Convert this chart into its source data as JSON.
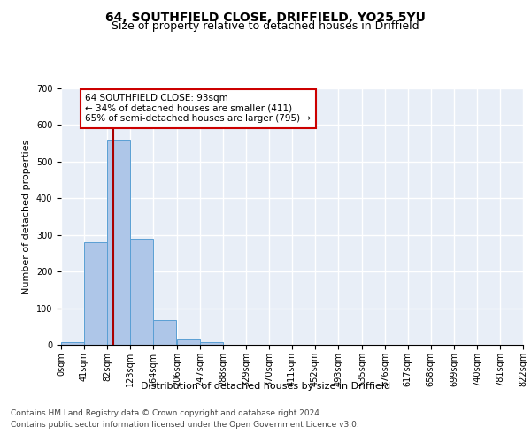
{
  "title1": "64, SOUTHFIELD CLOSE, DRIFFIELD, YO25 5YU",
  "title2": "Size of property relative to detached houses in Driffield",
  "xlabel": "Distribution of detached houses by size in Driffield",
  "ylabel": "Number of detached properties",
  "footer1": "Contains HM Land Registry data © Crown copyright and database right 2024.",
  "footer2": "Contains public sector information licensed under the Open Government Licence v3.0.",
  "bin_edges": [
    0,
    41,
    82,
    123,
    164,
    206,
    247,
    288,
    329,
    370,
    411,
    452,
    493,
    535,
    576,
    617,
    658,
    699,
    740,
    781,
    822
  ],
  "bin_counts": [
    8,
    280,
    560,
    290,
    68,
    14,
    8,
    0,
    0,
    0,
    0,
    0,
    0,
    0,
    0,
    0,
    0,
    0,
    0,
    0
  ],
  "bar_color": "#aec6e8",
  "bar_edge_color": "#5a9fd4",
  "property_size": 93,
  "vline_color": "#aa0000",
  "annotation_text": "64 SOUTHFIELD CLOSE: 93sqm\n← 34% of detached houses are smaller (411)\n65% of semi-detached houses are larger (795) →",
  "annotation_box_color": "#ffffff",
  "annotation_box_edge_color": "#cc0000",
  "ylim": [
    0,
    700
  ],
  "yticks": [
    0,
    100,
    200,
    300,
    400,
    500,
    600,
    700
  ],
  "bg_color": "#e8eef7",
  "grid_color": "#ffffff",
  "title1_fontsize": 10,
  "title2_fontsize": 9,
  "tick_label_fontsize": 7,
  "ylabel_fontsize": 8,
  "xlabel_fontsize": 8,
  "footer_fontsize": 6.5,
  "annot_fontsize": 7.5
}
